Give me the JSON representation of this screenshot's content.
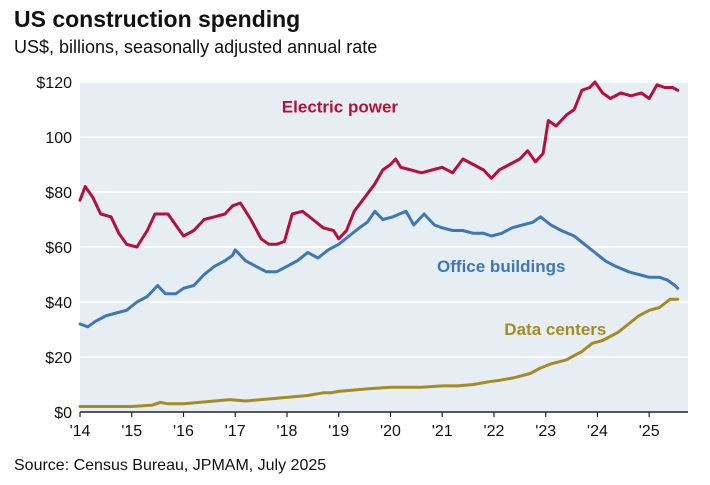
{
  "header": {
    "title": "US construction spending",
    "subtitle": "US$, billions, seasonally adjusted annual rate"
  },
  "footer": {
    "source": "Source: Census Bureau, JPMAM, July 2025"
  },
  "colors": {
    "background": "#E7EEF3",
    "grid": "#FFFFFF",
    "electric_power": "#B5103C",
    "office_buildings": "#3D77B5",
    "data_centers": "#A48C25"
  },
  "chart_data": {
    "type": "line",
    "title": "US construction spending",
    "subtitle": "US$, billions, seasonally adjusted annual rate",
    "xlabel": "",
    "ylabel": "",
    "xlim": [
      2014.0,
      2025.75
    ],
    "ylim": [
      0,
      120
    ],
    "grid": true,
    "legend": "inline labels",
    "x_ticks": [
      {
        "value": 2014,
        "label": "'14"
      },
      {
        "value": 2015,
        "label": "'15"
      },
      {
        "value": 2016,
        "label": "'16"
      },
      {
        "value": 2017,
        "label": "'17"
      },
      {
        "value": 2018,
        "label": "'18"
      },
      {
        "value": 2019,
        "label": "'19"
      },
      {
        "value": 2020,
        "label": "'20"
      },
      {
        "value": 2021,
        "label": "'21"
      },
      {
        "value": 2022,
        "label": "'22"
      },
      {
        "value": 2023,
        "label": "'23"
      },
      {
        "value": 2024,
        "label": "'24"
      },
      {
        "value": 2025,
        "label": "'25"
      }
    ],
    "y_ticks": [
      {
        "value": 0,
        "label": "$0"
      },
      {
        "value": 20,
        "label": "$20"
      },
      {
        "value": 40,
        "label": "$40"
      },
      {
        "value": 60,
        "label": "$60"
      },
      {
        "value": 80,
        "label": "$80"
      },
      {
        "value": 100,
        "label": "100"
      },
      {
        "value": 120,
        "label": "$120"
      }
    ],
    "series": [
      {
        "name": "Electric power",
        "color": "#B5103C",
        "label_at": [
          2017.9,
          109
        ],
        "points": [
          [
            2014.0,
            77
          ],
          [
            2014.1,
            82
          ],
          [
            2014.25,
            78
          ],
          [
            2014.4,
            72
          ],
          [
            2014.6,
            71
          ],
          [
            2014.75,
            65
          ],
          [
            2014.9,
            61
          ],
          [
            2015.1,
            60
          ],
          [
            2015.3,
            66
          ],
          [
            2015.45,
            72
          ],
          [
            2015.7,
            72
          ],
          [
            2015.85,
            68
          ],
          [
            2016.0,
            64
          ],
          [
            2016.2,
            66
          ],
          [
            2016.4,
            70
          ],
          [
            2016.6,
            71
          ],
          [
            2016.8,
            72
          ],
          [
            2016.95,
            75
          ],
          [
            2017.1,
            76
          ],
          [
            2017.3,
            70
          ],
          [
            2017.5,
            63
          ],
          [
            2017.65,
            61
          ],
          [
            2017.8,
            61
          ],
          [
            2017.95,
            62
          ],
          [
            2018.1,
            72
          ],
          [
            2018.3,
            73
          ],
          [
            2018.5,
            70
          ],
          [
            2018.7,
            67
          ],
          [
            2018.9,
            66
          ],
          [
            2019.0,
            63
          ],
          [
            2019.15,
            66
          ],
          [
            2019.3,
            73
          ],
          [
            2019.5,
            78
          ],
          [
            2019.7,
            83
          ],
          [
            2019.85,
            88
          ],
          [
            2020.0,
            90
          ],
          [
            2020.1,
            92
          ],
          [
            2020.2,
            89
          ],
          [
            2020.4,
            88
          ],
          [
            2020.6,
            87
          ],
          [
            2020.8,
            88
          ],
          [
            2021.0,
            89
          ],
          [
            2021.2,
            87
          ],
          [
            2021.4,
            92
          ],
          [
            2021.6,
            90
          ],
          [
            2021.8,
            88
          ],
          [
            2021.95,
            85
          ],
          [
            2022.1,
            88
          ],
          [
            2022.3,
            90
          ],
          [
            2022.5,
            92
          ],
          [
            2022.65,
            95
          ],
          [
            2022.8,
            91
          ],
          [
            2022.95,
            94
          ],
          [
            2023.05,
            106
          ],
          [
            2023.2,
            104
          ],
          [
            2023.4,
            108
          ],
          [
            2023.55,
            110
          ],
          [
            2023.7,
            117
          ],
          [
            2023.85,
            118
          ],
          [
            2023.95,
            120
          ],
          [
            2024.1,
            116
          ],
          [
            2024.25,
            114
          ],
          [
            2024.45,
            116
          ],
          [
            2024.65,
            115
          ],
          [
            2024.85,
            116
          ],
          [
            2025.0,
            114
          ],
          [
            2025.15,
            119
          ],
          [
            2025.3,
            118
          ],
          [
            2025.45,
            118
          ],
          [
            2025.55,
            117
          ]
        ]
      },
      {
        "name": "Office buildings",
        "color": "#3D77B5",
        "label_at": [
          2020.9,
          51
        ],
        "points": [
          [
            2014.0,
            32
          ],
          [
            2014.15,
            31
          ],
          [
            2014.3,
            33
          ],
          [
            2014.5,
            35
          ],
          [
            2014.7,
            36
          ],
          [
            2014.9,
            37
          ],
          [
            2015.1,
            40
          ],
          [
            2015.3,
            42
          ],
          [
            2015.5,
            46
          ],
          [
            2015.65,
            43
          ],
          [
            2015.85,
            43
          ],
          [
            2016.0,
            45
          ],
          [
            2016.2,
            46
          ],
          [
            2016.4,
            50
          ],
          [
            2016.6,
            53
          ],
          [
            2016.8,
            55
          ],
          [
            2016.95,
            57
          ],
          [
            2017.0,
            59
          ],
          [
            2017.2,
            55
          ],
          [
            2017.4,
            53
          ],
          [
            2017.6,
            51
          ],
          [
            2017.8,
            51
          ],
          [
            2018.0,
            53
          ],
          [
            2018.2,
            55
          ],
          [
            2018.4,
            58
          ],
          [
            2018.6,
            56
          ],
          [
            2018.8,
            59
          ],
          [
            2019.0,
            61
          ],
          [
            2019.2,
            64
          ],
          [
            2019.4,
            67
          ],
          [
            2019.55,
            69
          ],
          [
            2019.7,
            73
          ],
          [
            2019.85,
            70
          ],
          [
            2020.05,
            71
          ],
          [
            2020.3,
            73
          ],
          [
            2020.45,
            68
          ],
          [
            2020.65,
            72
          ],
          [
            2020.85,
            68
          ],
          [
            2021.0,
            67
          ],
          [
            2021.2,
            66
          ],
          [
            2021.4,
            66
          ],
          [
            2021.6,
            65
          ],
          [
            2021.8,
            65
          ],
          [
            2021.95,
            64
          ],
          [
            2022.15,
            65
          ],
          [
            2022.35,
            67
          ],
          [
            2022.55,
            68
          ],
          [
            2022.75,
            69
          ],
          [
            2022.9,
            71
          ],
          [
            2023.1,
            68
          ],
          [
            2023.3,
            66
          ],
          [
            2023.55,
            64
          ],
          [
            2023.75,
            61
          ],
          [
            2023.95,
            58
          ],
          [
            2024.15,
            55
          ],
          [
            2024.35,
            53
          ],
          [
            2024.6,
            51
          ],
          [
            2024.8,
            50
          ],
          [
            2025.0,
            49
          ],
          [
            2025.2,
            49
          ],
          [
            2025.35,
            48
          ],
          [
            2025.5,
            46
          ],
          [
            2025.55,
            45
          ]
        ]
      },
      {
        "name": "Data centers",
        "color": "#A48C25",
        "label_at": [
          2022.2,
          28
        ],
        "points": [
          [
            2014.0,
            2
          ],
          [
            2014.5,
            2
          ],
          [
            2015.0,
            2
          ],
          [
            2015.4,
            2.5
          ],
          [
            2015.55,
            3.5
          ],
          [
            2015.7,
            3
          ],
          [
            2016.0,
            3
          ],
          [
            2016.3,
            3.5
          ],
          [
            2016.6,
            4
          ],
          [
            2016.9,
            4.5
          ],
          [
            2017.2,
            4
          ],
          [
            2017.5,
            4.5
          ],
          [
            2017.8,
            5
          ],
          [
            2018.1,
            5.5
          ],
          [
            2018.4,
            6
          ],
          [
            2018.7,
            7
          ],
          [
            2018.85,
            7
          ],
          [
            2019.0,
            7.5
          ],
          [
            2019.3,
            8
          ],
          [
            2019.6,
            8.5
          ],
          [
            2020.0,
            9
          ],
          [
            2020.3,
            9
          ],
          [
            2020.6,
            9
          ],
          [
            2021.0,
            9.5
          ],
          [
            2021.3,
            9.5
          ],
          [
            2021.6,
            10
          ],
          [
            2021.9,
            11
          ],
          [
            2022.1,
            11.5
          ],
          [
            2022.4,
            12.5
          ],
          [
            2022.7,
            14
          ],
          [
            2022.9,
            16
          ],
          [
            2023.1,
            17.5
          ],
          [
            2023.4,
            19
          ],
          [
            2023.7,
            22
          ],
          [
            2023.9,
            25
          ],
          [
            2024.1,
            26
          ],
          [
            2024.4,
            29
          ],
          [
            2024.6,
            32
          ],
          [
            2024.8,
            35
          ],
          [
            2025.0,
            37
          ],
          [
            2025.2,
            38
          ],
          [
            2025.4,
            41
          ],
          [
            2025.55,
            41
          ]
        ]
      }
    ]
  }
}
